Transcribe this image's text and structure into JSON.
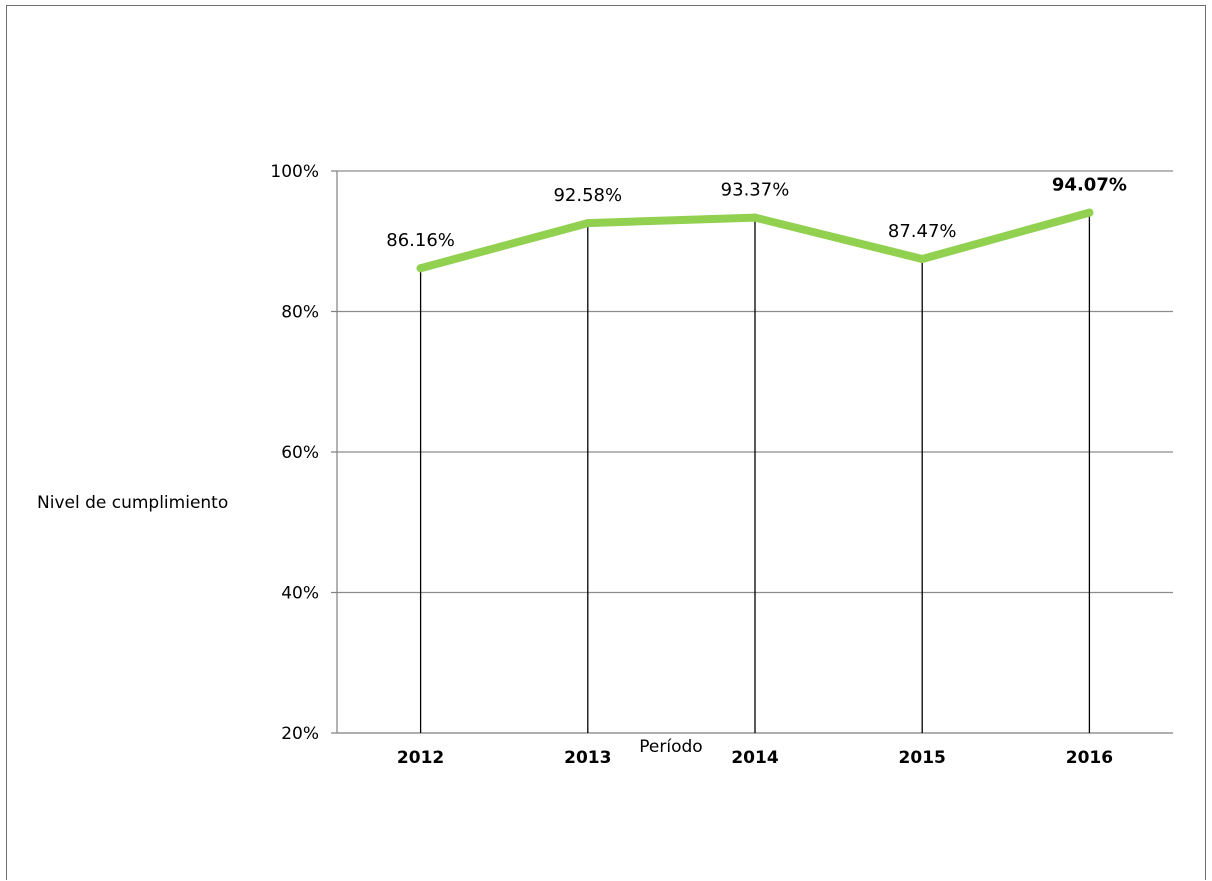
{
  "chart_data": {
    "type": "line",
    "title": "",
    "xlabel": "Período",
    "ylabel": "Nivel de cumplimiento",
    "categories": [
      "2012",
      "2013",
      "2014",
      "2015",
      "2016"
    ],
    "series": [
      {
        "values": [
          86.16,
          92.58,
          93.37,
          87.47,
          94.07
        ],
        "labels": [
          "86.16%",
          "92.58%",
          "93.37%",
          "87.47%",
          "94.07%"
        ],
        "color": "#92d050"
      }
    ],
    "ylim": [
      20,
      100
    ],
    "yticks": [
      20,
      40,
      60,
      80,
      100
    ],
    "ytick_labels": [
      "20%",
      "40%",
      "60%",
      "80%",
      "100%"
    ],
    "grid": true,
    "drop_lines": true,
    "bold_label_index": 4,
    "gridline_color": "#8c8c8c",
    "axis_color": "#7f7f7f"
  }
}
